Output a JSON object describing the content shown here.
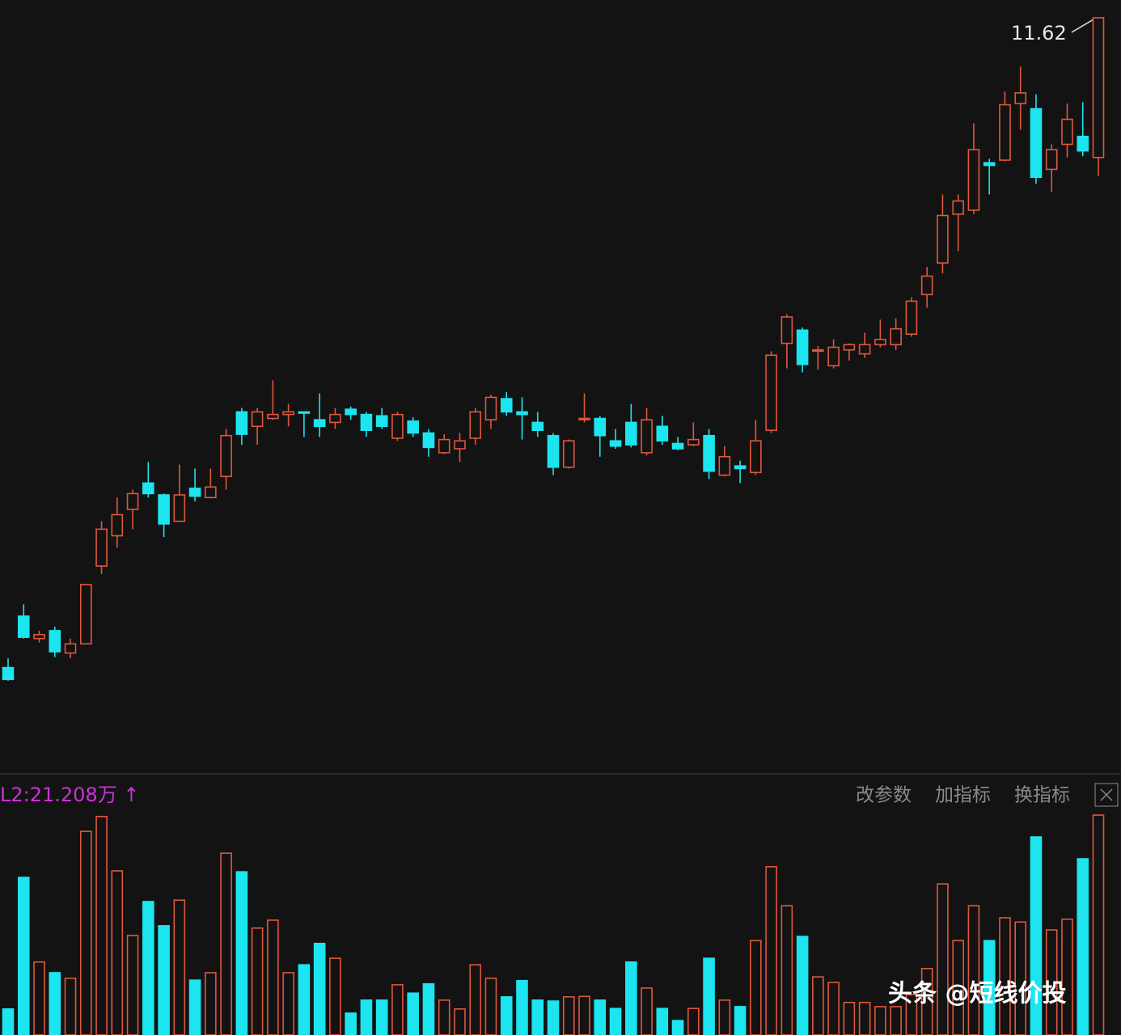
{
  "chart_data": {
    "type": "candlestick",
    "annotation": "11.62",
    "volume_label": "L2:21.208万 ↑",
    "toolbar": [
      "改参数",
      "加指标",
      "换指标"
    ],
    "watermark": "头条 @短线价投",
    "up_color": "#e0573c",
    "down_color": "#1ce5f0",
    "open": [
      6.69,
      7.08,
      6.91,
      6.97,
      6.8,
      6.87,
      7.46,
      7.69,
      7.89,
      8.09,
      8.0,
      7.8,
      8.05,
      7.98,
      8.14,
      8.63,
      8.52,
      8.58,
      8.61,
      8.63,
      8.57,
      8.55,
      8.65,
      8.61,
      8.6,
      8.43,
      8.56,
      8.47,
      8.32,
      8.35,
      8.43,
      8.57,
      8.73,
      8.63,
      8.55,
      8.45,
      8.21,
      8.58,
      8.58,
      8.41,
      8.55,
      8.32,
      8.52,
      8.39,
      8.38,
      8.45,
      8.15,
      8.22,
      8.17,
      8.49,
      9.15,
      9.25,
      9.09,
      8.98,
      9.1,
      9.07,
      9.14,
      9.14,
      9.22,
      9.52,
      9.76,
      10.13,
      10.16,
      10.52,
      10.54,
      10.97,
      10.93,
      10.47,
      10.66,
      10.72,
      10.56
    ],
    "high": [
      6.76,
      7.17,
      6.97,
      7.0,
      6.91,
      7.32,
      7.8,
      7.98,
      8.04,
      8.25,
      8.01,
      8.23,
      8.2,
      8.2,
      8.5,
      8.66,
      8.66,
      8.87,
      8.69,
      8.63,
      8.77,
      8.66,
      8.67,
      8.63,
      8.66,
      8.63,
      8.59,
      8.5,
      8.46,
      8.47,
      8.66,
      8.76,
      8.78,
      8.74,
      8.63,
      8.47,
      8.42,
      8.77,
      8.6,
      8.5,
      8.69,
      8.66,
      8.6,
      8.44,
      8.55,
      8.5,
      8.37,
      8.26,
      8.57,
      9.09,
      9.37,
      9.27,
      9.13,
      9.18,
      9.15,
      9.23,
      9.33,
      9.34,
      9.5,
      9.73,
      10.28,
      10.28,
      10.82,
      10.55,
      11.06,
      11.25,
      11.04,
      10.66,
      10.97,
      10.98,
      11.62
    ],
    "low": [
      6.59,
      6.91,
      6.88,
      6.77,
      6.76,
      6.87,
      7.4,
      7.6,
      7.74,
      7.98,
      7.68,
      7.8,
      7.95,
      7.98,
      8.04,
      8.38,
      8.38,
      8.57,
      8.52,
      8.44,
      8.44,
      8.5,
      8.57,
      8.44,
      8.5,
      8.41,
      8.44,
      8.29,
      8.31,
      8.25,
      8.38,
      8.5,
      8.6,
      8.42,
      8.44,
      8.15,
      8.2,
      8.55,
      8.29,
      8.35,
      8.36,
      8.3,
      8.38,
      8.34,
      8.37,
      8.12,
      8.14,
      8.09,
      8.15,
      8.47,
      8.96,
      8.93,
      8.95,
      8.96,
      9.02,
      9.04,
      9.12,
      9.1,
      9.2,
      9.42,
      9.68,
      9.85,
      10.13,
      10.28,
      10.53,
      10.77,
      10.36,
      10.3,
      10.56,
      10.57,
      10.42
    ],
    "close": [
      6.6,
      6.92,
      6.94,
      6.81,
      6.87,
      7.32,
      7.74,
      7.85,
      8.01,
      8.01,
      7.78,
      8.0,
      7.99,
      8.06,
      8.45,
      8.46,
      8.63,
      8.61,
      8.63,
      8.62,
      8.52,
      8.61,
      8.61,
      8.49,
      8.52,
      8.61,
      8.47,
      8.36,
      8.42,
      8.41,
      8.63,
      8.74,
      8.63,
      8.61,
      8.49,
      8.21,
      8.41,
      8.58,
      8.45,
      8.37,
      8.38,
      8.57,
      8.41,
      8.35,
      8.42,
      8.18,
      8.29,
      8.2,
      8.41,
      9.06,
      9.35,
      8.99,
      9.1,
      9.12,
      9.14,
      9.14,
      9.18,
      9.26,
      9.47,
      9.66,
      10.12,
      10.23,
      10.62,
      10.5,
      10.96,
      11.05,
      10.41,
      10.62,
      10.85,
      10.61,
      11.62
    ],
    "volume": [
      5.6,
      33.9,
      15.7,
      13.4,
      12.2,
      43.8,
      47.0,
      35.3,
      21.4,
      28.7,
      23.5,
      29.0,
      11.8,
      13.4,
      39.1,
      35.1,
      23.0,
      24.7,
      13.4,
      15.1,
      19.7,
      16.5,
      4.7,
      7.5,
      7.5,
      10.8,
      9.0,
      11.0,
      7.5,
      5.6,
      15.1,
      12.2,
      8.2,
      11.7,
      7.5,
      7.3,
      8.2,
      8.3,
      7.5,
      5.7,
      15.7,
      10.1,
      5.7,
      3.1,
      5.7,
      16.5,
      7.5,
      6.1,
      20.3,
      36.2,
      27.8,
      21.2,
      12.5,
      11.3,
      7.0,
      7.0,
      6.1,
      6.1,
      8.7,
      14.3,
      32.5,
      20.3,
      27.8,
      20.3,
      25.2,
      24.3,
      42.6,
      22.6,
      24.9,
      37.9,
      47.3
    ]
  }
}
